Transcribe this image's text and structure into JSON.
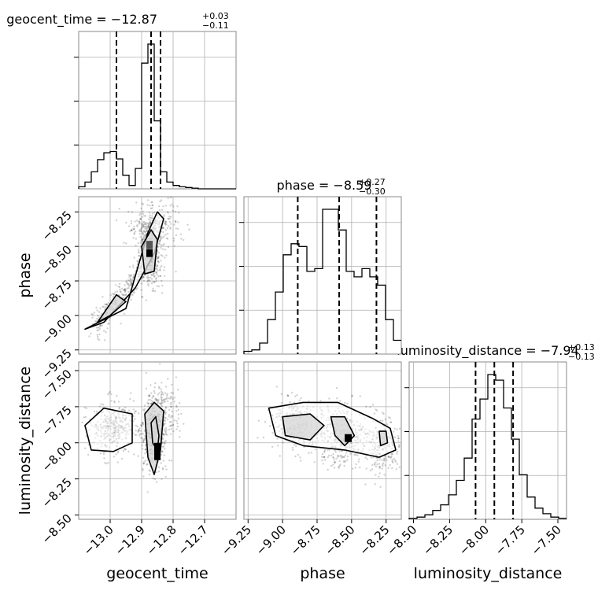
{
  "chart_data": {
    "type": "corner",
    "parameters": [
      "geocent_time",
      "phase",
      "luminosity_distance"
    ],
    "axis_labels": {
      "geocent_time": "geocent_time",
      "phase": "phase",
      "luminosity_distance": "luminosity_distance"
    },
    "ranges": {
      "geocent_time": [
        -13.1,
        -12.6
      ],
      "phase": [
        -9.28,
        -8.14
      ],
      "luminosity_distance": [
        -8.53,
        -7.44
      ]
    },
    "ticks": {
      "geocent_time": [
        -13.0,
        -12.9,
        -12.8,
        -12.7
      ],
      "phase": [
        -9.25,
        -9.0,
        -8.75,
        -8.5,
        -8.25
      ],
      "luminosity_distance": [
        -8.5,
        -8.25,
        -8.0,
        -7.75,
        -7.5
      ]
    },
    "tick_labels": {
      "geocent_time": [
        "−13.0",
        "−12.9",
        "−12.8",
        "−12.7"
      ],
      "phase": [
        "−9.25",
        "−9.00",
        "−8.75",
        "−8.50",
        "−8.25"
      ],
      "luminosity_distance": [
        "−8.50",
        "−8.25",
        "−8.00",
        "−7.75",
        "−7.50"
      ]
    },
    "titles": {
      "geocent_time": {
        "name": "geocent_time",
        "median": "−12.87",
        "plus": "+0.03",
        "minus": "−0.11"
      },
      "phase": {
        "name": "phase",
        "median": "−8.59",
        "plus": "+0.27",
        "minus": "−0.30"
      },
      "luminosity_distance": {
        "name": "luminosity_distance",
        "median": "−7.94",
        "plus": "+0.13",
        "minus": "−0.13"
      }
    },
    "quantiles": {
      "geocent_time": [
        -12.98,
        -12.87,
        -12.84
      ],
      "phase": [
        -8.89,
        -8.59,
        -8.32
      ],
      "luminosity_distance": [
        -8.07,
        -7.94,
        -7.81
      ]
    },
    "histograms": {
      "geocent_time": {
        "edges_start": -13.1,
        "bin_width": 0.02,
        "counts": [
          3,
          10,
          25,
          43,
          53,
          55,
          44,
          20,
          5,
          30,
          185,
          213,
          100,
          25,
          10,
          5,
          3,
          2,
          1,
          0,
          0,
          0,
          0,
          0,
          0
        ]
      },
      "phase": {
        "edges_start": -9.28,
        "bin_width": 0.057,
        "counts": [
          2,
          3,
          8,
          25,
          45,
          72,
          80,
          78,
          60,
          62,
          105,
          105,
          90,
          60,
          56,
          62,
          56,
          50,
          25,
          10
        ]
      },
      "luminosity_distance": {
        "edges_start": -8.53,
        "bin_width": 0.0545,
        "counts": [
          1,
          2,
          4,
          8,
          13,
          22,
          35,
          55,
          90,
          108,
          130,
          125,
          100,
          72,
          40,
          20,
          10,
          5,
          2,
          1
        ]
      }
    },
    "grid": true
  }
}
